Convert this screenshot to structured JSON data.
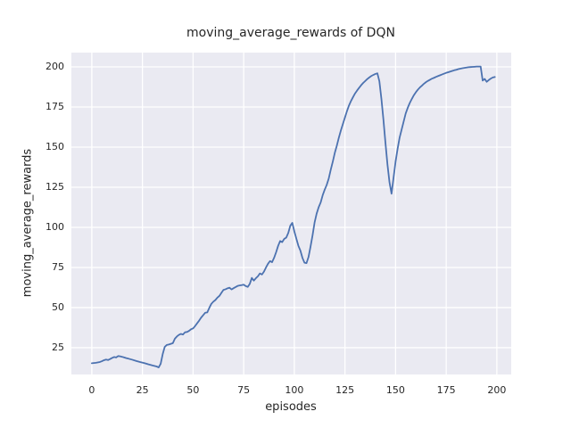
{
  "chart_data": {
    "type": "line",
    "title": "moving_average_rewards of DQN",
    "xlabel": "episodes",
    "ylabel": "moving_average_rewards",
    "xticks": [
      0,
      25,
      50,
      75,
      100,
      125,
      150,
      175,
      200
    ],
    "yticks": [
      25,
      50,
      75,
      100,
      125,
      150,
      175,
      200
    ],
    "xlim": [
      -10.1,
      207.1
    ],
    "ylim": [
      8.3,
      208.9
    ],
    "grid": true,
    "legend": "none",
    "colors": {
      "line": "#4c72b0",
      "plot_bg": "#eaeaf2",
      "grid": "#ffffff",
      "text": "#262626",
      "fig_bg": "#ffffff"
    },
    "series_name": "moving_average_rewards",
    "x": [
      0,
      2,
      4,
      5,
      6,
      7,
      8,
      9,
      10,
      11,
      12,
      13,
      14,
      15,
      16,
      17,
      18,
      20,
      22,
      24,
      26,
      28,
      30,
      32,
      33,
      34,
      35,
      36,
      37,
      38,
      39,
      40,
      41,
      42,
      43,
      44,
      45,
      46,
      47,
      48,
      49,
      50,
      51,
      52,
      53,
      54,
      55,
      56,
      57,
      58,
      59,
      60,
      61,
      62,
      63,
      64,
      65,
      66,
      67,
      68,
      69,
      70,
      71,
      72,
      73,
      74,
      75,
      76,
      77,
      78,
      79,
      80,
      81,
      82,
      83,
      84,
      85,
      86,
      87,
      88,
      89,
      90,
      91,
      92,
      93,
      94,
      95,
      96,
      97,
      98,
      99,
      100,
      101,
      102,
      103,
      104,
      105,
      106,
      107,
      108,
      109,
      110,
      111,
      112,
      113,
      114,
      115,
      116,
      117,
      118,
      119,
      120,
      121,
      122,
      123,
      124,
      125,
      126,
      127,
      128,
      129,
      130,
      131,
      132,
      133,
      134,
      135,
      136,
      137,
      138,
      139,
      140,
      141,
      142,
      143,
      144,
      145,
      146,
      147,
      148,
      149,
      150,
      151,
      152,
      153,
      154,
      155,
      156,
      157,
      158,
      159,
      160,
      161,
      162,
      163,
      164,
      165,
      166,
      167,
      168,
      169,
      170,
      171,
      172,
      173,
      174,
      175,
      176,
      177,
      178,
      179,
      180,
      181,
      182,
      183,
      184,
      185,
      186,
      187,
      188,
      189,
      190,
      191,
      192,
      193,
      194,
      195,
      196,
      197,
      198,
      199
    ],
    "y": [
      15.3,
      15.6,
      16.1,
      16.6,
      17.2,
      17.6,
      17.3,
      17.9,
      18.6,
      19.2,
      18.9,
      19.8,
      19.6,
      19.3,
      18.9,
      18.5,
      18.2,
      17.5,
      16.7,
      16.0,
      15.4,
      14.6,
      13.9,
      13.3,
      12.7,
      15.0,
      21.0,
      25.5,
      26.7,
      27.0,
      27.4,
      27.8,
      30.6,
      32.0,
      33.0,
      33.6,
      33.2,
      34.6,
      34.8,
      35.5,
      36.5,
      37.0,
      38.5,
      40.2,
      41.9,
      43.8,
      45.3,
      46.8,
      47.0,
      49.8,
      52.3,
      53.7,
      54.7,
      56.2,
      57.3,
      59.2,
      61.0,
      61.4,
      62.0,
      62.4,
      61.3,
      62.1,
      62.8,
      63.5,
      63.8,
      64.0,
      64.3,
      63.4,
      62.9,
      64.8,
      68.5,
      66.8,
      68.3,
      69.5,
      71.3,
      70.6,
      72.4,
      75.0,
      77.3,
      79.0,
      78.3,
      81.0,
      84.5,
      88.5,
      91.5,
      90.8,
      92.8,
      93.6,
      96.5,
      101.0,
      102.8,
      97.5,
      93.0,
      88.5,
      85.5,
      81.0,
      78.0,
      77.7,
      81.5,
      88.0,
      95.0,
      103.0,
      108.5,
      112.5,
      115.5,
      120.0,
      123.5,
      126.5,
      130.5,
      136.0,
      141.0,
      146.5,
      151.0,
      156.0,
      160.5,
      164.5,
      168.5,
      172.5,
      176.0,
      178.8,
      181.2,
      183.5,
      185.3,
      187.0,
      188.6,
      190.0,
      191.2,
      192.4,
      193.4,
      194.3,
      195.0,
      195.6,
      196.0,
      191.0,
      180.0,
      167.0,
      152.5,
      139.0,
      128.0,
      121.0,
      131.0,
      141.0,
      149.0,
      156.0,
      161.0,
      166.0,
      171.0,
      174.5,
      177.5,
      180.0,
      182.3,
      184.2,
      185.8,
      187.2,
      188.3,
      189.5,
      190.5,
      191.3,
      192.0,
      192.7,
      193.2,
      193.8,
      194.3,
      194.8,
      195.3,
      195.8,
      196.3,
      196.7,
      197.1,
      197.5,
      197.9,
      198.2,
      198.6,
      198.9,
      199.2,
      199.4,
      199.6,
      199.8,
      199.9,
      200.0,
      200.1,
      200.2,
      200.2,
      200.2,
      191.5,
      192.5,
      190.7,
      191.8,
      192.7,
      193.4,
      193.7
    ]
  }
}
